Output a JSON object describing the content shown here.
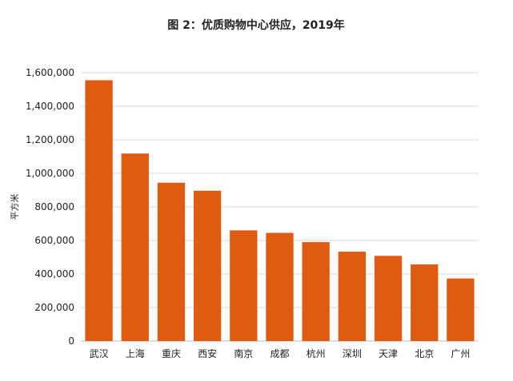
{
  "chart_data": {
    "type": "bar",
    "title": "图 2：优质购物中心供应，2019年",
    "ylabel": "平方米",
    "xlabel": "",
    "categories": [
      "武汉",
      "上海",
      "重庆",
      "西安",
      "南京",
      "成都",
      "杭州",
      "深圳",
      "天津",
      "北京",
      "广州"
    ],
    "values": [
      1555000,
      1118000,
      944000,
      896000,
      660000,
      645000,
      590000,
      533000,
      508000,
      457000,
      373000
    ],
    "ylim": [
      0,
      1600000
    ],
    "yticks": [
      0,
      200000,
      400000,
      600000,
      800000,
      1000000,
      1200000,
      1400000,
      1600000
    ],
    "ytick_labels": [
      "0",
      "200,000",
      "400,000",
      "600,000",
      "800,000",
      "1,000,000",
      "1,200,000",
      "1,400,000",
      "1,600,000"
    ],
    "grid": true,
    "legend": "none",
    "bar_color": "#E05B12"
  }
}
